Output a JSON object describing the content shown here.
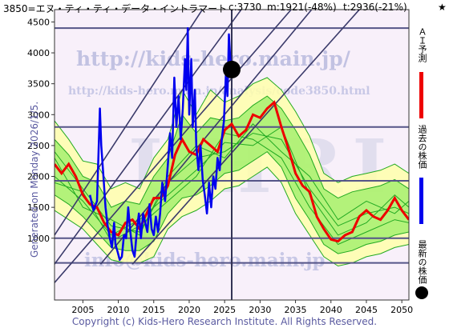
{
  "header": {
    "code_name": "3850=エヌ・ティ・ティ・データ・イントラマート",
    "current": "c:3730",
    "min": "m:1921(-48%)",
    "target": "t:2936(-21%)",
    "star": "★"
  },
  "side_note": "Generated on Monday 2026/1/5.",
  "watermarks": {
    "url_top": "http://kids-hero.main.jp/",
    "url_mid": "http://kids-hero.main.jp/analysis/code3850.html",
    "big": "KHRI",
    "email": "info@kids-hero.main.jp"
  },
  "legend": {
    "ai_label": "ＡＩ予測",
    "past_label": "過去の株価",
    "latest_label": "最新の株価"
  },
  "footer": {
    "copyright": "Copyright (c) Kids-Hero Research Institute. All Rights Reserved."
  },
  "colors": {
    "background": "#F8F0FA",
    "prediction": "#EE0000",
    "history": "#0000EE",
    "band_outer": "#FFFFAA",
    "band_inner": "#99EE66",
    "band_line": "#22AA22",
    "grid_line": "#555588",
    "latest_marker": "#000000"
  },
  "chart_data": {
    "type": "line",
    "xlim": [
      2001,
      2051
    ],
    "ylim": [
      0,
      4700
    ],
    "x_ticks": [
      "2005",
      "2010",
      "2015",
      "2020",
      "2025",
      "2030",
      "2035",
      "2040",
      "2045",
      "2050"
    ],
    "y_ticks": [
      "1000",
      "1500",
      "2000",
      "2500",
      "3000",
      "3500",
      "4000",
      "4500"
    ],
    "horizontal_levels": [
      600,
      1000,
      1930,
      2800,
      4400
    ],
    "trend_lines": [
      {
        "from": [
          2001,
          280
        ],
        "to": [
          2051,
          6900
        ]
      },
      {
        "from": [
          2001,
          580
        ],
        "to": [
          2051,
          8400
        ]
      },
      {
        "from": [
          2001,
          1050
        ],
        "to": [
          2051,
          9800
        ]
      },
      {
        "from": [
          2007.5,
          580
        ],
        "to": [
          2051,
          6600
        ]
      },
      {
        "from": [
          2012,
          580
        ],
        "to": [
          2051,
          5600
        ]
      }
    ],
    "latest_date_x": 2026.0,
    "latest_point": {
      "x": 2026.0,
      "y": 3730
    },
    "series": [
      {
        "name": "過去の株価",
        "points": [
          [
            2006.0,
            1700
          ],
          [
            2006.5,
            1450
          ],
          [
            2007.0,
            1600
          ],
          [
            2007.4,
            3100
          ],
          [
            2007.6,
            2500
          ],
          [
            2007.9,
            2000
          ],
          [
            2008.2,
            1500
          ],
          [
            2008.5,
            1200
          ],
          [
            2008.8,
            1000
          ],
          [
            2009.1,
            850
          ],
          [
            2009.4,
            1250
          ],
          [
            2009.6,
            900
          ],
          [
            2009.9,
            780
          ],
          [
            2010.2,
            650
          ],
          [
            2010.5,
            700
          ],
          [
            2010.8,
            1050
          ],
          [
            2011.1,
            1000
          ],
          [
            2011.4,
            1500
          ],
          [
            2011.7,
            1100
          ],
          [
            2012.0,
            800
          ],
          [
            2012.3,
            700
          ],
          [
            2012.6,
            1100
          ],
          [
            2012.9,
            1400
          ],
          [
            2013.2,
            1000
          ],
          [
            2013.5,
            1400
          ],
          [
            2013.8,
            1250
          ],
          [
            2014.1,
            1100
          ],
          [
            2014.4,
            1550
          ],
          [
            2014.7,
            1150
          ],
          [
            2015.0,
            1050
          ],
          [
            2015.3,
            1350
          ],
          [
            2015.6,
            1100
          ],
          [
            2015.9,
            1400
          ],
          [
            2016.2,
            1900
          ],
          [
            2016.6,
            1600
          ],
          [
            2017.0,
            2200
          ],
          [
            2017.3,
            2700
          ],
          [
            2017.6,
            2300
          ],
          [
            2017.9,
            3600
          ],
          [
            2018.2,
            2800
          ],
          [
            2018.5,
            3300
          ],
          [
            2018.8,
            2600
          ],
          [
            2019.1,
            3100
          ],
          [
            2019.4,
            3900
          ],
          [
            2019.6,
            3400
          ],
          [
            2019.8,
            4400
          ],
          [
            2020.0,
            3000
          ],
          [
            2020.3,
            3900
          ],
          [
            2020.5,
            2800
          ],
          [
            2020.8,
            3400
          ],
          [
            2021.0,
            2500
          ],
          [
            2021.3,
            2100
          ],
          [
            2021.6,
            2500
          ],
          [
            2021.9,
            1950
          ],
          [
            2022.2,
            1700
          ],
          [
            2022.5,
            1400
          ],
          [
            2022.8,
            1900
          ],
          [
            2023.1,
            1500
          ],
          [
            2023.4,
            2000
          ],
          [
            2023.7,
            1800
          ],
          [
            2024.0,
            2300
          ],
          [
            2024.3,
            2100
          ],
          [
            2024.6,
            2600
          ],
          [
            2024.9,
            2900
          ],
          [
            2025.2,
            3700
          ],
          [
            2025.4,
            3300
          ],
          [
            2025.6,
            4300
          ],
          [
            2025.8,
            3900
          ],
          [
            2026.0,
            3730
          ]
        ]
      },
      {
        "name": "ＡＩ予測",
        "points": [
          [
            2001.0,
            2200
          ],
          [
            2002.0,
            2050
          ],
          [
            2003.0,
            2200
          ],
          [
            2004.0,
            2000
          ],
          [
            2005.0,
            1700
          ],
          [
            2006.0,
            1550
          ],
          [
            2007.0,
            1500
          ],
          [
            2008.0,
            1250
          ],
          [
            2009.0,
            1100
          ],
          [
            2010.0,
            1050
          ],
          [
            2011.0,
            1250
          ],
          [
            2012.0,
            1300
          ],
          [
            2013.0,
            1150
          ],
          [
            2014.0,
            1400
          ],
          [
            2015.0,
            1650
          ],
          [
            2016.0,
            1650
          ],
          [
            2017.0,
            1850
          ],
          [
            2018.0,
            2350
          ],
          [
            2019.0,
            2600
          ],
          [
            2020.0,
            2400
          ],
          [
            2021.0,
            2350
          ],
          [
            2022.0,
            2600
          ],
          [
            2023.0,
            2500
          ],
          [
            2024.0,
            2400
          ],
          [
            2025.0,
            2750
          ],
          [
            2026.0,
            2850
          ],
          [
            2027.0,
            2650
          ],
          [
            2028.0,
            2750
          ],
          [
            2029.0,
            3000
          ],
          [
            2030.0,
            2950
          ],
          [
            2031.0,
            3100
          ],
          [
            2032.0,
            3200
          ],
          [
            2033.0,
            2800
          ],
          [
            2034.0,
            2450
          ],
          [
            2035.0,
            2050
          ],
          [
            2036.0,
            1850
          ],
          [
            2037.0,
            1750
          ],
          [
            2038.0,
            1350
          ],
          [
            2039.0,
            1150
          ],
          [
            2040.0,
            980
          ],
          [
            2041.0,
            950
          ],
          [
            2042.0,
            1050
          ],
          [
            2043.0,
            1100
          ],
          [
            2044.0,
            1350
          ],
          [
            2045.0,
            1450
          ],
          [
            2046.0,
            1350
          ],
          [
            2047.0,
            1300
          ],
          [
            2048.0,
            1450
          ],
          [
            2049.0,
            1650
          ],
          [
            2050.0,
            1450
          ],
          [
            2051.0,
            1300
          ]
        ]
      }
    ],
    "band_outer": {
      "upper": [
        [
          2001.0,
          2900
        ],
        [
          2003.0,
          2600
        ],
        [
          2005.0,
          2250
        ],
        [
          2007.0,
          2200
        ],
        [
          2009.0,
          1800
        ],
        [
          2011.0,
          1900
        ],
        [
          2013.0,
          1800
        ],
        [
          2015.0,
          2300
        ],
        [
          2017.0,
          2600
        ],
        [
          2019.0,
          3400
        ],
        [
          2021.0,
          3000
        ],
        [
          2023.0,
          3400
        ],
        [
          2025.0,
          3200
        ],
        [
          2027.0,
          3300
        ],
        [
          2029.0,
          3500
        ],
        [
          2031.0,
          3600
        ],
        [
          2033.0,
          3400
        ],
        [
          2035.0,
          3050
        ],
        [
          2037.0,
          2650
        ],
        [
          2039.0,
          2050
        ],
        [
          2041.0,
          1900
        ],
        [
          2043.0,
          2000
        ],
        [
          2045.0,
          2050
        ],
        [
          2047.0,
          2100
        ],
        [
          2049.0,
          2200
        ],
        [
          2051.0,
          2050
        ]
      ],
      "lower": [
        [
          2001.0,
          1450
        ],
        [
          2003.0,
          1300
        ],
        [
          2005.0,
          1150
        ],
        [
          2007.0,
          900
        ],
        [
          2009.0,
          650
        ],
        [
          2011.0,
          600
        ],
        [
          2013.0,
          600
        ],
        [
          2015.0,
          700
        ],
        [
          2017.0,
          1150
        ],
        [
          2019.0,
          1350
        ],
        [
          2021.0,
          1450
        ],
        [
          2023.0,
          1600
        ],
        [
          2025.0,
          1800
        ],
        [
          2027.0,
          1850
        ],
        [
          2029.0,
          2000
        ],
        [
          2031.0,
          2150
        ],
        [
          2033.0,
          1900
        ],
        [
          2035.0,
          1400
        ],
        [
          2037.0,
          1050
        ],
        [
          2039.0,
          700
        ],
        [
          2041.0,
          550
        ],
        [
          2043.0,
          600
        ],
        [
          2045.0,
          700
        ],
        [
          2047.0,
          750
        ],
        [
          2049.0,
          850
        ],
        [
          2051.0,
          900
        ]
      ]
    },
    "band_inner": {
      "upper": [
        [
          2001.0,
          2600
        ],
        [
          2003.0,
          2350
        ],
        [
          2005.0,
          2000
        ],
        [
          2007.0,
          1900
        ],
        [
          2009.0,
          1500
        ],
        [
          2011.0,
          1600
        ],
        [
          2013.0,
          1550
        ],
        [
          2015.0,
          2000
        ],
        [
          2017.0,
          2300
        ],
        [
          2019.0,
          3000
        ],
        [
          2021.0,
          2700
        ],
        [
          2023.0,
          2950
        ],
        [
          2025.0,
          2900
        ],
        [
          2027.0,
          2950
        ],
        [
          2029.0,
          3150
        ],
        [
          2031.0,
          3300
        ],
        [
          2033.0,
          3100
        ],
        [
          2035.0,
          2750
        ],
        [
          2037.0,
          2350
        ],
        [
          2039.0,
          1800
        ],
        [
          2041.0,
          1650
        ],
        [
          2043.0,
          1750
        ],
        [
          2045.0,
          1800
        ],
        [
          2047.0,
          1850
        ],
        [
          2049.0,
          1950
        ],
        [
          2051.0,
          1800
        ]
      ],
      "lower": [
        [
          2001.0,
          1700
        ],
        [
          2003.0,
          1550
        ],
        [
          2005.0,
          1350
        ],
        [
          2007.0,
          1100
        ],
        [
          2009.0,
          850
        ],
        [
          2011.0,
          800
        ],
        [
          2013.0,
          800
        ],
        [
          2015.0,
          950
        ],
        [
          2017.0,
          1400
        ],
        [
          2019.0,
          1650
        ],
        [
          2021.0,
          1700
        ],
        [
          2023.0,
          1850
        ],
        [
          2025.0,
          2050
        ],
        [
          2027.0,
          2100
        ],
        [
          2029.0,
          2250
        ],
        [
          2031.0,
          2400
        ],
        [
          2033.0,
          2150
        ],
        [
          2035.0,
          1650
        ],
        [
          2037.0,
          1300
        ],
        [
          2039.0,
          900
        ],
        [
          2041.0,
          750
        ],
        [
          2043.0,
          800
        ],
        [
          2045.0,
          900
        ],
        [
          2047.0,
          950
        ],
        [
          2049.0,
          1050
        ],
        [
          2051.0,
          1100
        ]
      ]
    },
    "band_wiggles": [
      [
        [
          2001,
          2400
        ],
        [
          2005,
          1800
        ],
        [
          2009,
          1200
        ],
        [
          2013,
          1100
        ],
        [
          2017,
          1900
        ],
        [
          2021,
          2300
        ],
        [
          2025,
          2400
        ],
        [
          2029,
          2700
        ],
        [
          2033,
          2600
        ],
        [
          2037,
          1800
        ],
        [
          2041,
          1200
        ],
        [
          2045,
          1400
        ],
        [
          2049,
          1500
        ],
        [
          2051,
          1400
        ]
      ],
      [
        [
          2001,
          2000
        ],
        [
          2005,
          1600
        ],
        [
          2009,
          1050
        ],
        [
          2013,
          1300
        ],
        [
          2017,
          1700
        ],
        [
          2021,
          2100
        ],
        [
          2025,
          2550
        ],
        [
          2029,
          2500
        ],
        [
          2033,
          2800
        ],
        [
          2037,
          1700
        ],
        [
          2041,
          1050
        ],
        [
          2045,
          1250
        ],
        [
          2049,
          1700
        ],
        [
          2051,
          1500
        ]
      ],
      [
        [
          2001,
          2300
        ],
        [
          2005,
          1500
        ],
        [
          2009,
          1300
        ],
        [
          2013,
          1050
        ],
        [
          2017,
          2000
        ],
        [
          2021,
          2500
        ],
        [
          2025,
          2300
        ],
        [
          2029,
          2850
        ],
        [
          2033,
          2400
        ],
        [
          2037,
          2000
        ],
        [
          2041,
          1300
        ],
        [
          2045,
          1600
        ],
        [
          2049,
          1400
        ],
        [
          2051,
          1600
        ]
      ],
      [
        [
          2001,
          1900
        ],
        [
          2005,
          1750
        ],
        [
          2009,
          950
        ],
        [
          2013,
          1200
        ],
        [
          2017,
          1600
        ],
        [
          2021,
          2000
        ],
        [
          2025,
          2700
        ],
        [
          2029,
          2600
        ],
        [
          2033,
          2300
        ],
        [
          2037,
          1500
        ],
        [
          2041,
          900
        ],
        [
          2045,
          1100
        ],
        [
          2049,
          1300
        ],
        [
          2051,
          1250
        ]
      ]
    ]
  }
}
